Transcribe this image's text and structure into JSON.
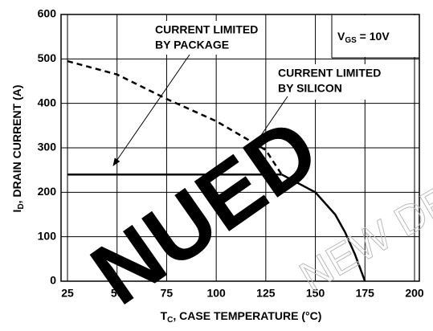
{
  "chart_data": {
    "type": "line",
    "xlabel": [
      "T",
      "C",
      ", CASE TEMPERATURE (°C)"
    ],
    "ylabel": [
      "I",
      "D",
      ", DRAIN CURRENT (A)"
    ],
    "annotations": {
      "package": [
        "CURRENT LIMITED",
        "BY PACKAGE"
      ],
      "silicon": [
        "CURRENT LIMITED",
        "BY SILICON"
      ],
      "vgs": [
        "V",
        "GS",
        " = 10V"
      ]
    },
    "watermark": [
      "NUED",
      "NEW DE"
    ],
    "series": [
      {
        "color": "#000000",
        "dashed": true,
        "x": [
          25,
          50,
          75,
          100,
          125,
          133
        ],
        "values": [
          495,
          465,
          410,
          360,
          295,
          240
        ]
      },
      {
        "color": "#000000",
        "dashed": false,
        "x": [
          133,
          150,
          160,
          165,
          170,
          175
        ],
        "values": [
          240,
          200,
          150,
          110,
          60,
          0
        ]
      },
      {
        "color": "#000000",
        "dashed": false,
        "x": [
          25,
          133
        ],
        "values": [
          240,
          240
        ]
      }
    ],
    "xlim": [
      25,
      200
    ],
    "xticks": [
      25,
      50,
      75,
      100,
      125,
      150,
      175,
      200
    ],
    "ylim": [
      0,
      600
    ],
    "yticks": [
      0,
      100,
      200,
      300,
      400,
      500,
      600
    ],
    "grid": true
  }
}
